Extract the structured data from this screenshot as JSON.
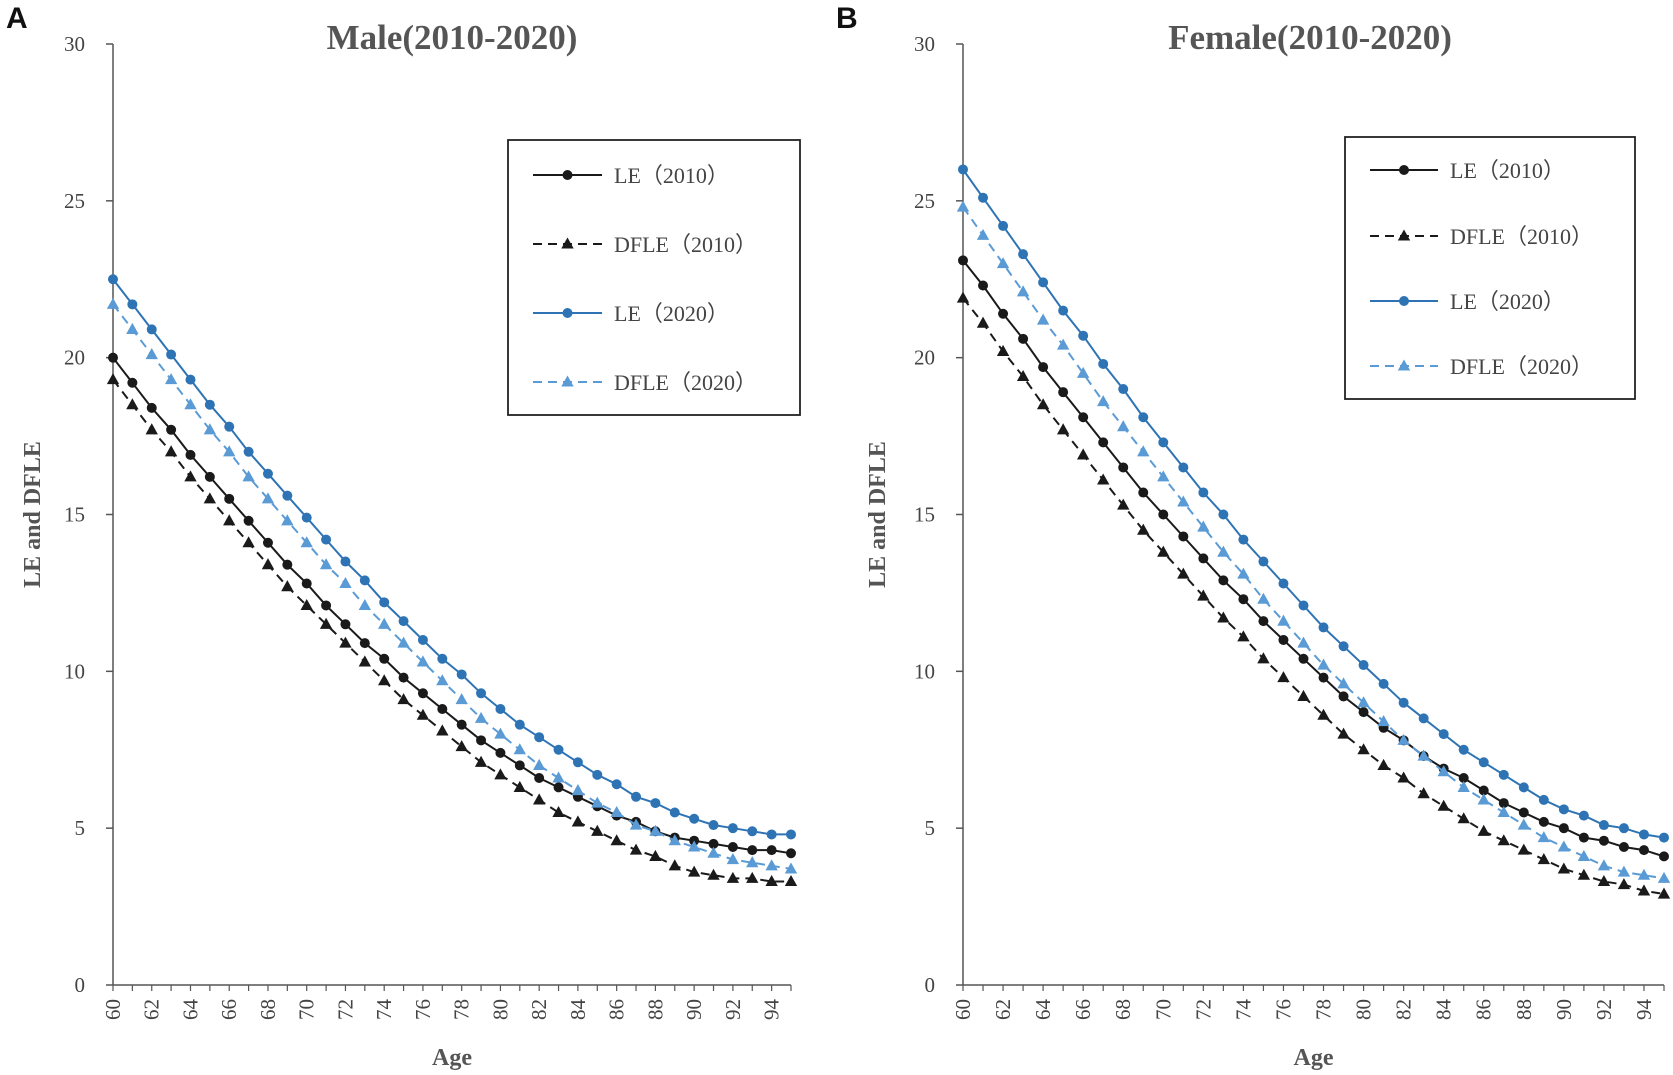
{
  "panels": [
    "A",
    "B"
  ],
  "chart_data": [
    {
      "type": "line",
      "panel": "A",
      "title": "Male(2010-2020)",
      "xlabel": "Age",
      "ylabel": "LE and DFLE",
      "xlim": [
        60,
        95
      ],
      "ylim": [
        0,
        30
      ],
      "yticks": [
        0,
        5,
        10,
        15,
        20,
        25,
        30
      ],
      "xticks": [
        60,
        62,
        64,
        66,
        68,
        70,
        72,
        74,
        76,
        78,
        80,
        82,
        84,
        86,
        88,
        90,
        92,
        94
      ],
      "legend_position": "top-right",
      "x": [
        60,
        61,
        62,
        63,
        64,
        65,
        66,
        67,
        68,
        69,
        70,
        71,
        72,
        73,
        74,
        75,
        76,
        77,
        78,
        79,
        80,
        81,
        82,
        83,
        84,
        85,
        86,
        87,
        88,
        89,
        90,
        91,
        92,
        93,
        94,
        95
      ],
      "series": [
        {
          "name": "LE（2010）",
          "color": "#1a1a1a",
          "dash": "solid",
          "marker": "circle",
          "values": [
            20.0,
            19.2,
            18.4,
            17.7,
            16.9,
            16.2,
            15.5,
            14.8,
            14.1,
            13.4,
            12.8,
            12.1,
            11.5,
            10.9,
            10.4,
            9.8,
            9.3,
            8.8,
            8.3,
            7.8,
            7.4,
            7.0,
            6.6,
            6.3,
            6.0,
            5.7,
            5.4,
            5.2,
            4.9,
            4.7,
            4.6,
            4.5,
            4.4,
            4.3,
            4.3,
            4.2
          ]
        },
        {
          "name": "DFLE（2010）",
          "color": "#1a1a1a",
          "dash": "dashed",
          "marker": "triangle",
          "values": [
            19.3,
            18.5,
            17.7,
            17.0,
            16.2,
            15.5,
            14.8,
            14.1,
            13.4,
            12.7,
            12.1,
            11.5,
            10.9,
            10.3,
            9.7,
            9.1,
            8.6,
            8.1,
            7.6,
            7.1,
            6.7,
            6.3,
            5.9,
            5.5,
            5.2,
            4.9,
            4.6,
            4.3,
            4.1,
            3.8,
            3.6,
            3.5,
            3.4,
            3.4,
            3.3,
            3.3
          ]
        },
        {
          "name": "LE（2020）",
          "color": "#2e74b5",
          "dash": "solid",
          "marker": "circle",
          "values": [
            22.5,
            21.7,
            20.9,
            20.1,
            19.3,
            18.5,
            17.8,
            17.0,
            16.3,
            15.6,
            14.9,
            14.2,
            13.5,
            12.9,
            12.2,
            11.6,
            11.0,
            10.4,
            9.9,
            9.3,
            8.8,
            8.3,
            7.9,
            7.5,
            7.1,
            6.7,
            6.4,
            6.0,
            5.8,
            5.5,
            5.3,
            5.1,
            5.0,
            4.9,
            4.8,
            4.8
          ]
        },
        {
          "name": "DFLE（2020）",
          "color": "#5b9bd5",
          "dash": "dashed",
          "marker": "triangle",
          "values": [
            21.7,
            20.9,
            20.1,
            19.3,
            18.5,
            17.7,
            17.0,
            16.2,
            15.5,
            14.8,
            14.1,
            13.4,
            12.8,
            12.1,
            11.5,
            10.9,
            10.3,
            9.7,
            9.1,
            8.5,
            8.0,
            7.5,
            7.0,
            6.6,
            6.2,
            5.8,
            5.5,
            5.1,
            4.9,
            4.6,
            4.4,
            4.2,
            4.0,
            3.9,
            3.8,
            3.7
          ]
        }
      ]
    },
    {
      "type": "line",
      "panel": "B",
      "title": "Female(2010-2020)",
      "xlabel": "Age",
      "ylabel": "LE and DFLE",
      "xlim": [
        60,
        95
      ],
      "ylim": [
        0,
        30
      ],
      "yticks": [
        0,
        5,
        10,
        15,
        20,
        25,
        30
      ],
      "xticks": [
        60,
        62,
        64,
        66,
        68,
        70,
        72,
        74,
        76,
        78,
        80,
        82,
        84,
        86,
        88,
        90,
        92,
        94
      ],
      "legend_position": "top-right",
      "x": [
        60,
        61,
        62,
        63,
        64,
        65,
        66,
        67,
        68,
        69,
        70,
        71,
        72,
        73,
        74,
        75,
        76,
        77,
        78,
        79,
        80,
        81,
        82,
        83,
        84,
        85,
        86,
        87,
        88,
        89,
        90,
        91,
        92,
        93,
        94,
        95
      ],
      "series": [
        {
          "name": "LE（2010）",
          "color": "#1a1a1a",
          "dash": "solid",
          "marker": "circle",
          "values": [
            23.1,
            22.3,
            21.4,
            20.6,
            19.7,
            18.9,
            18.1,
            17.3,
            16.5,
            15.7,
            15.0,
            14.3,
            13.6,
            12.9,
            12.3,
            11.6,
            11.0,
            10.4,
            9.8,
            9.2,
            8.7,
            8.2,
            7.8,
            7.3,
            6.9,
            6.6,
            6.2,
            5.8,
            5.5,
            5.2,
            5.0,
            4.7,
            4.6,
            4.4,
            4.3,
            4.1
          ]
        },
        {
          "name": "DFLE（2010）",
          "color": "#1a1a1a",
          "dash": "dashed",
          "marker": "triangle",
          "values": [
            21.9,
            21.1,
            20.2,
            19.4,
            18.5,
            17.7,
            16.9,
            16.1,
            15.3,
            14.5,
            13.8,
            13.1,
            12.4,
            11.7,
            11.1,
            10.4,
            9.8,
            9.2,
            8.6,
            8.0,
            7.5,
            7.0,
            6.6,
            6.1,
            5.7,
            5.3,
            4.9,
            4.6,
            4.3,
            4.0,
            3.7,
            3.5,
            3.3,
            3.2,
            3.0,
            2.9
          ]
        },
        {
          "name": "LE（2020）",
          "color": "#2e74b5",
          "dash": "solid",
          "marker": "circle",
          "values": [
            26.0,
            25.1,
            24.2,
            23.3,
            22.4,
            21.5,
            20.7,
            19.8,
            19.0,
            18.1,
            17.3,
            16.5,
            15.7,
            15.0,
            14.2,
            13.5,
            12.8,
            12.1,
            11.4,
            10.8,
            10.2,
            9.6,
            9.0,
            8.5,
            8.0,
            7.5,
            7.1,
            6.7,
            6.3,
            5.9,
            5.6,
            5.4,
            5.1,
            5.0,
            4.8,
            4.7
          ]
        },
        {
          "name": "DFLE（2020）",
          "color": "#5b9bd5",
          "dash": "dashed",
          "marker": "triangle",
          "values": [
            24.8,
            23.9,
            23.0,
            22.1,
            21.2,
            20.4,
            19.5,
            18.6,
            17.8,
            17.0,
            16.2,
            15.4,
            14.6,
            13.8,
            13.1,
            12.3,
            11.6,
            10.9,
            10.2,
            9.6,
            9.0,
            8.4,
            7.8,
            7.3,
            6.8,
            6.3,
            5.9,
            5.5,
            5.1,
            4.7,
            4.4,
            4.1,
            3.8,
            3.6,
            3.5,
            3.4
          ]
        }
      ]
    }
  ]
}
